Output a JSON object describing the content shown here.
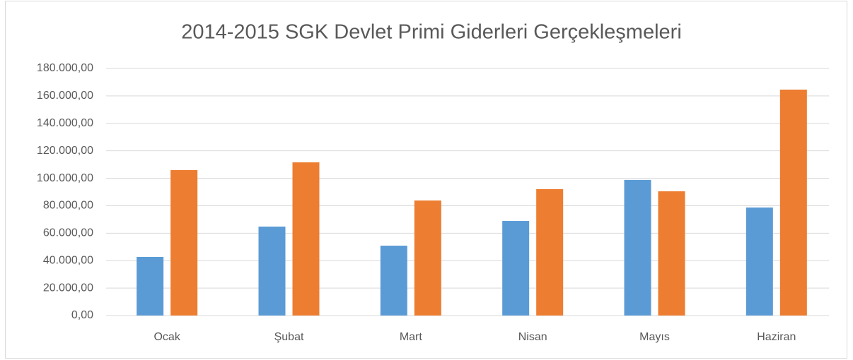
{
  "chart_data": {
    "type": "bar",
    "title": "2014-2015 SGK Devlet Primi Giderleri Gerçekleşmeleri",
    "categories": [
      "Ocak",
      "Şubat",
      "Mart",
      "Nisan",
      "Mayıs",
      "Haziran"
    ],
    "series": [
      {
        "color": "#5b9bd5",
        "values": [
          42700,
          64800,
          50900,
          68900,
          98800,
          78700
        ]
      },
      {
        "color": "#ed7d31",
        "values": [
          106000,
          111600,
          83800,
          92100,
          90500,
          164600
        ]
      }
    ],
    "ylim": [
      0,
      180000
    ],
    "yticks": [
      {
        "value": 0,
        "label": "0,00"
      },
      {
        "value": 20000,
        "label": "20.000,00"
      },
      {
        "value": 40000,
        "label": "40.000,00"
      },
      {
        "value": 60000,
        "label": "60.000,00"
      },
      {
        "value": 80000,
        "label": "80.000,00"
      },
      {
        "value": 100000,
        "label": "100.000,00"
      },
      {
        "value": 120000,
        "label": "120.000,00"
      },
      {
        "value": 140000,
        "label": "140.000,00"
      },
      {
        "value": 160000,
        "label": "160.000,00"
      },
      {
        "value": 180000,
        "label": "180.000,00"
      }
    ],
    "grid": true
  }
}
